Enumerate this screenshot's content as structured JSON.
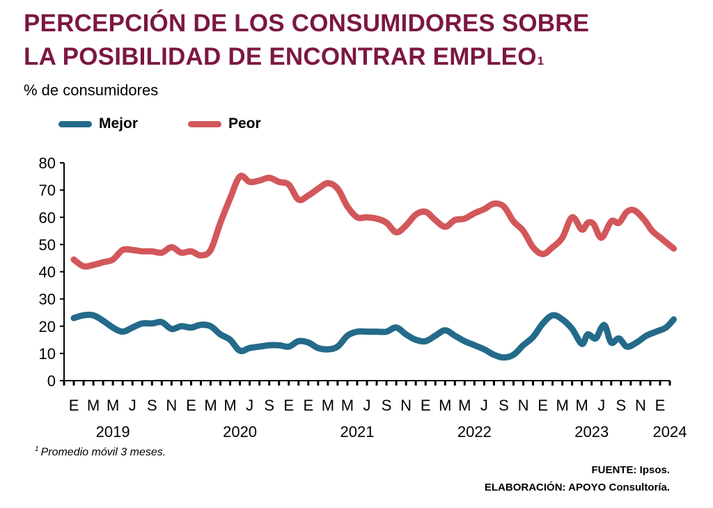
{
  "title": {
    "line1": "PERCEPCIÓN DE LOS CONSUMIDORES SOBRE",
    "line2": "LA POSIBILIDAD DE ENCONTRAR EMPLEO",
    "footnote_mark": "1"
  },
  "subtitle": "% de consumidores",
  "legend": [
    {
      "label": "Mejor",
      "color": "#246a8a"
    },
    {
      "label": "Peor",
      "color": "#d2575b"
    }
  ],
  "footnote": {
    "mark": "1",
    "text": "Promedio móvil 3 meses."
  },
  "source": "FUENTE: Ipsos.",
  "elaboration": "ELABORACIÓN: APOYO Consultoría.",
  "chart_data": {
    "type": "line",
    "ylim": [
      0,
      80
    ],
    "yticks": [
      "0",
      "10",
      "20",
      "30",
      "40",
      "50",
      "60",
      "70",
      "80"
    ],
    "xtick_labels": [
      "E",
      "M",
      "M",
      "J",
      "S",
      "N",
      "E",
      "M",
      "M",
      "J",
      "S",
      "E",
      "E",
      "M",
      "M",
      "J",
      "S",
      "N",
      "E",
      "M",
      "M",
      "J",
      "S",
      "N",
      "E",
      "M",
      "M",
      "J",
      "S",
      "N",
      "E"
    ],
    "year_labels": [
      {
        "label": "2019",
        "index": 2
      },
      {
        "label": "2020",
        "index": 8.5
      },
      {
        "label": "2021",
        "index": 14.5
      },
      {
        "label": "2022",
        "index": 20.5
      },
      {
        "label": "2023",
        "index": 26.5
      },
      {
        "label": "2024",
        "index": 30.5
      }
    ],
    "series": [
      {
        "name": "Mejor",
        "color": "#246a8a",
        "values": [
          [
            0,
            23
          ],
          [
            0.5,
            24
          ],
          [
            1,
            24
          ],
          [
            1.5,
            22
          ],
          [
            2,
            19.5
          ],
          [
            2.5,
            18
          ],
          [
            3,
            19.5
          ],
          [
            3.5,
            21
          ],
          [
            4,
            21
          ],
          [
            4.5,
            21.5
          ],
          [
            5,
            19
          ],
          [
            5.5,
            20
          ],
          [
            6,
            19.5
          ],
          [
            6.5,
            20.5
          ],
          [
            7,
            20
          ],
          [
            7.5,
            17
          ],
          [
            8,
            15
          ],
          [
            8.5,
            11
          ],
          [
            9,
            12
          ],
          [
            9.5,
            12.5
          ],
          [
            10,
            13
          ],
          [
            10.5,
            13
          ],
          [
            11,
            12.5
          ],
          [
            11.5,
            14.5
          ],
          [
            12,
            14
          ],
          [
            12.5,
            12
          ],
          [
            13,
            11.5
          ],
          [
            13.5,
            12.5
          ],
          [
            14,
            16.5
          ],
          [
            14.5,
            18
          ],
          [
            15,
            18
          ],
          [
            15.5,
            18
          ],
          [
            16,
            18
          ],
          [
            16.5,
            19.5
          ],
          [
            17,
            17
          ],
          [
            17.5,
            15
          ],
          [
            18,
            14.5
          ],
          [
            18.5,
            16.5
          ],
          [
            19,
            18.5
          ],
          [
            19.5,
            16.5
          ],
          [
            20,
            14.5
          ],
          [
            20.5,
            13
          ],
          [
            21,
            11.5
          ],
          [
            21.5,
            9.5
          ],
          [
            22,
            8.5
          ],
          [
            22.5,
            9.5
          ],
          [
            23,
            13
          ],
          [
            23.5,
            16
          ],
          [
            24,
            21
          ],
          [
            24.5,
            24
          ],
          [
            25,
            22.5
          ],
          [
            25.5,
            19
          ],
          [
            26,
            13.5
          ],
          [
            26.3,
            17
          ],
          [
            26.7,
            15.5
          ],
          [
            27,
            19.5
          ],
          [
            27.2,
            20
          ],
          [
            27.5,
            14
          ],
          [
            27.9,
            15.5
          ],
          [
            28.3,
            12.5
          ],
          [
            28.8,
            14
          ],
          [
            29.3,
            16.5
          ],
          [
            29.8,
            18
          ],
          [
            30.3,
            19.5
          ],
          [
            30.7,
            22.5
          ]
        ]
      },
      {
        "name": "Peor",
        "color": "#d2575b",
        "values": [
          [
            0,
            44.5
          ],
          [
            0.5,
            42
          ],
          [
            1,
            42.5
          ],
          [
            1.5,
            43.5
          ],
          [
            2,
            44.5
          ],
          [
            2.5,
            48
          ],
          [
            3,
            48
          ],
          [
            3.5,
            47.5
          ],
          [
            4,
            47.5
          ],
          [
            4.5,
            47
          ],
          [
            5,
            49
          ],
          [
            5.5,
            47
          ],
          [
            6,
            47.5
          ],
          [
            6.5,
            46
          ],
          [
            7,
            48
          ],
          [
            7.5,
            58
          ],
          [
            8,
            67
          ],
          [
            8.5,
            75
          ],
          [
            9,
            73
          ],
          [
            9.5,
            73.5
          ],
          [
            10,
            74.5
          ],
          [
            10.5,
            73
          ],
          [
            11,
            72
          ],
          [
            11.5,
            66.5
          ],
          [
            12,
            68
          ],
          [
            12.5,
            70.5
          ],
          [
            13,
            72.5
          ],
          [
            13.5,
            70.5
          ],
          [
            14,
            64
          ],
          [
            14.5,
            60
          ],
          [
            15,
            60
          ],
          [
            15.5,
            59.5
          ],
          [
            16,
            58
          ],
          [
            16.5,
            54.5
          ],
          [
            17,
            57
          ],
          [
            17.5,
            61
          ],
          [
            18,
            62
          ],
          [
            18.5,
            59
          ],
          [
            19,
            56.5
          ],
          [
            19.5,
            59
          ],
          [
            20,
            59.5
          ],
          [
            20.5,
            61.5
          ],
          [
            21,
            63
          ],
          [
            21.5,
            65
          ],
          [
            22,
            64
          ],
          [
            22.5,
            58.5
          ],
          [
            23,
            55
          ],
          [
            23.5,
            49
          ],
          [
            24,
            46.5
          ],
          [
            24.5,
            49
          ],
          [
            25,
            52.5
          ],
          [
            25.5,
            60
          ],
          [
            26,
            55.5
          ],
          [
            26.3,
            58
          ],
          [
            26.6,
            57.5
          ],
          [
            27,
            52.5
          ],
          [
            27.5,
            58.5
          ],
          [
            27.9,
            58
          ],
          [
            28.3,
            62
          ],
          [
            28.7,
            62.5
          ],
          [
            29.2,
            59
          ],
          [
            29.6,
            55
          ],
          [
            30.1,
            52
          ],
          [
            30.7,
            48.5
          ]
        ]
      }
    ]
  }
}
